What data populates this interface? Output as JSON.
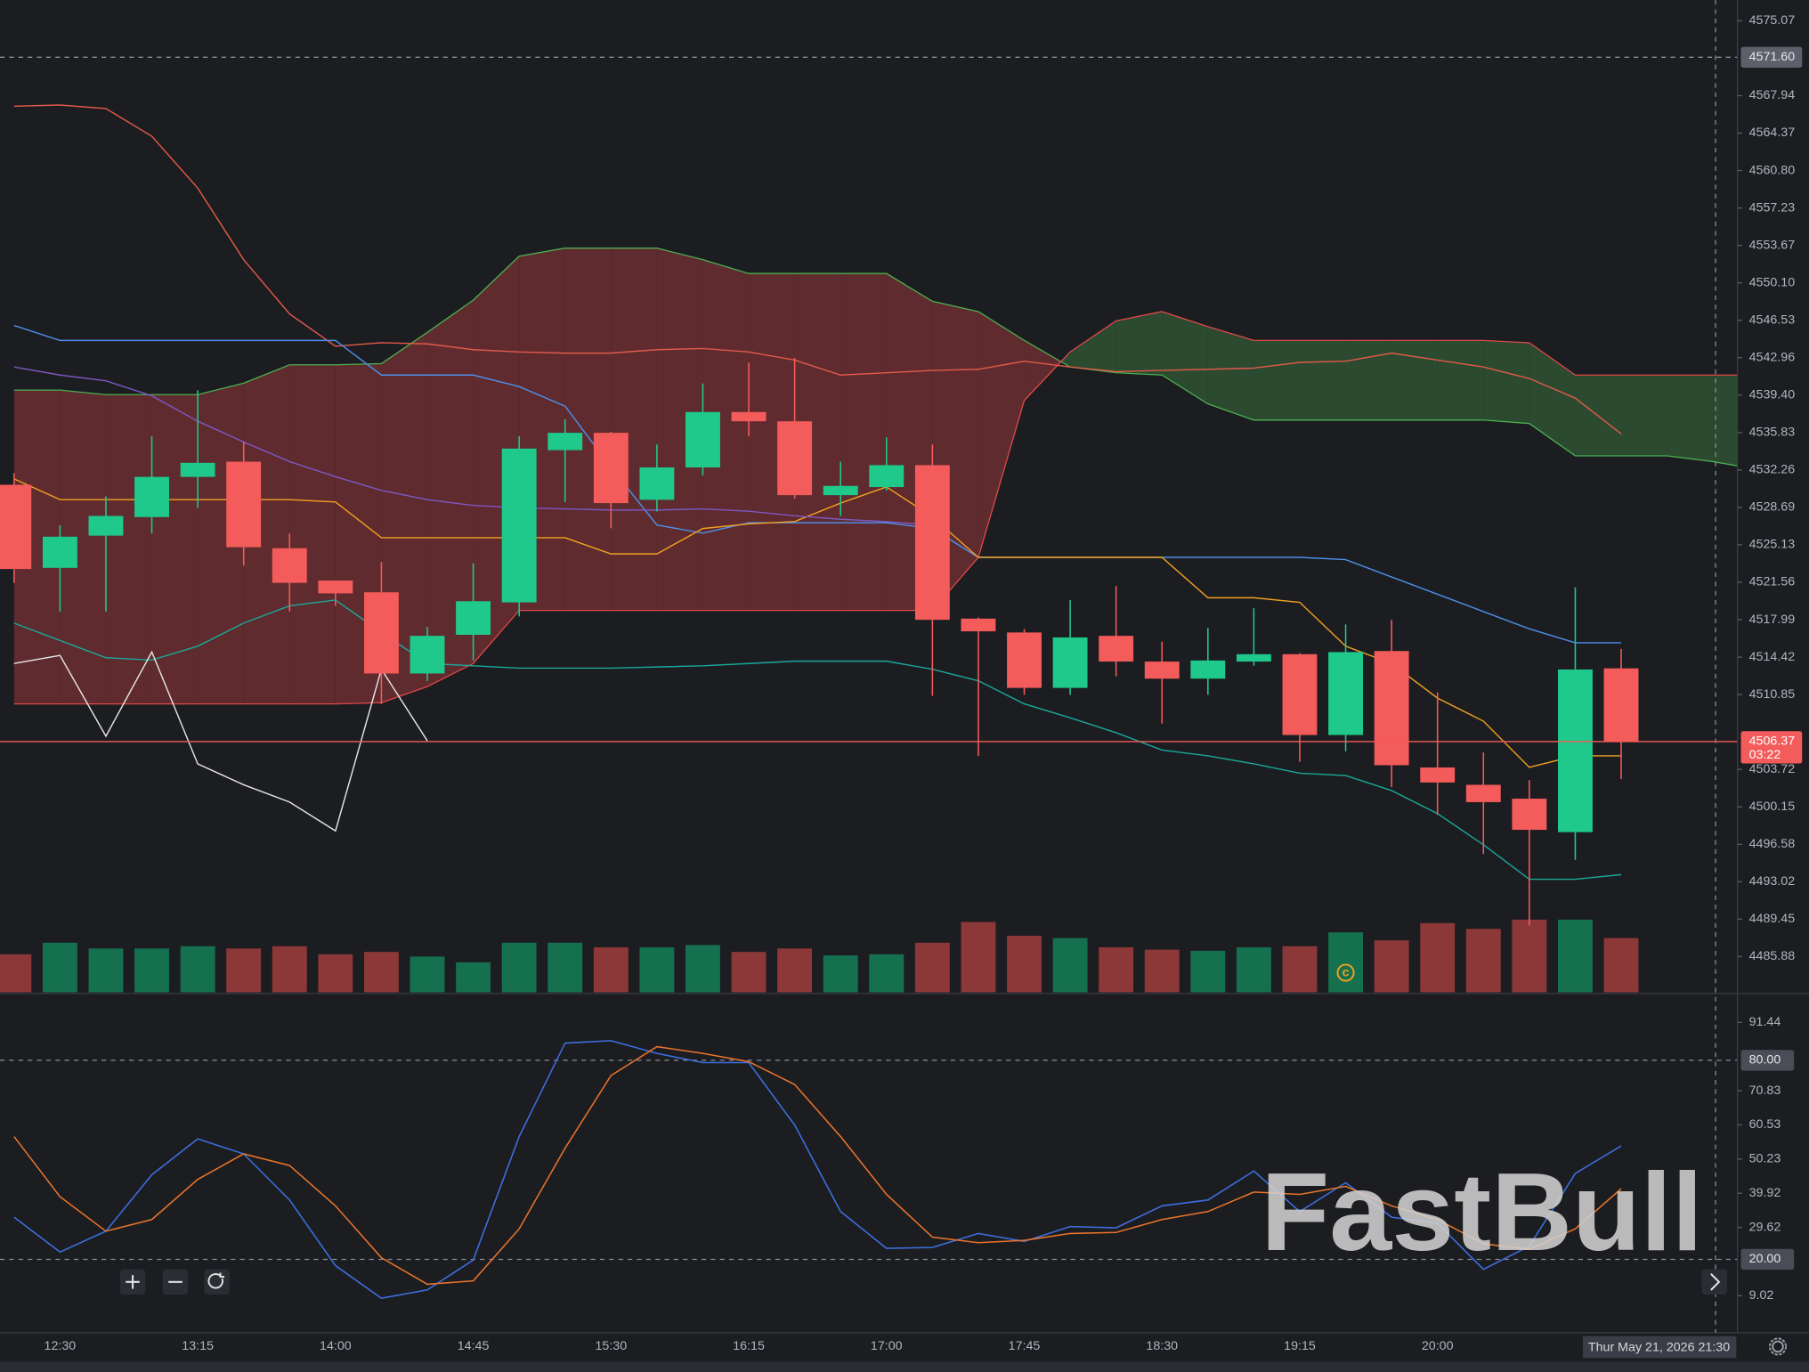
{
  "chart_data": [
    {
      "type": "candlestick",
      "categories": [
        null,
        "12:30",
        null,
        null,
        "13:15",
        null,
        null,
        "14:00",
        null,
        null,
        "14:45",
        null,
        null,
        "15:30",
        null,
        null,
        "16:15",
        null,
        null,
        "17:00",
        null,
        null,
        "17:45",
        null,
        null,
        "18:30",
        null,
        null,
        "19:15",
        null,
        null,
        "20:00",
        null,
        null,
        null,
        null,
        null,
        null,
        null
      ],
      "open": [
        4530.85,
        4522.93,
        4526.0,
        4527.77,
        4531.6,
        4533.05,
        4524.8,
        4521.72,
        4520.6,
        4512.86,
        4516.55,
        4519.64,
        4534.15,
        4535.8,
        4529.42,
        4532.5,
        4537.78,
        4536.9,
        4529.86,
        4530.63,
        4532.72,
        4518.09,
        4516.77,
        4511.49,
        4516.45,
        4514.0,
        4512.37,
        4514.0,
        4514.7,
        4507.0,
        4515.0,
        4503.9,
        4502.25,
        4500.93,
        4497.74,
        4513.35,
        null,
        null,
        null
      ],
      "high": [
        4531.95,
        4527.0,
        4529.75,
        4535.47,
        4539.87,
        4534.92,
        4526.2,
        4521.72,
        4523.5,
        4517.3,
        4523.37,
        4535.47,
        4537.1,
        4535.9,
        4534.7,
        4540.5,
        4542.5,
        4542.95,
        4533.05,
        4535.36,
        4534.7,
        4518.2,
        4517.1,
        4519.85,
        4521.2,
        4515.9,
        4517.2,
        4519.08,
        4514.8,
        4517.54,
        4517.98,
        4511.05,
        4505.33,
        4502.69,
        4521.07,
        4515.2,
        null,
        null,
        null
      ],
      "low": [
        4521.5,
        4518.75,
        4518.75,
        4526.2,
        4528.65,
        4523.15,
        4518.75,
        4519.3,
        4509.95,
        4512.15,
        4514.1,
        4518.3,
        4529.2,
        4526.7,
        4528.3,
        4531.73,
        4535.47,
        4529.53,
        4527.88,
        4530.3,
        4510.72,
        4505.0,
        4510.83,
        4510.83,
        4512.6,
        4508.08,
        4510.83,
        4513.6,
        4504.45,
        4505.44,
        4502.05,
        4499.39,
        4495.65,
        4488.85,
        4495.1,
        4502.8,
        null,
        null,
        null
      ],
      "close": [
        4522.82,
        4525.9,
        4527.88,
        4531.6,
        4532.94,
        4524.9,
        4521.5,
        4520.5,
        4512.86,
        4516.45,
        4519.75,
        4534.3,
        4535.8,
        4529.1,
        4532.5,
        4537.78,
        4536.9,
        4529.86,
        4530.74,
        4532.72,
        4517.98,
        4516.88,
        4511.49,
        4516.3,
        4514.0,
        4512.37,
        4514.1,
        4514.7,
        4507.0,
        4514.9,
        4504.12,
        4502.47,
        4500.6,
        4497.96,
        4513.24,
        4506.37,
        null,
        null,
        null
      ],
      "volume": [
        33,
        43,
        38,
        38,
        40,
        38,
        40,
        33,
        35,
        31,
        26,
        43,
        43,
        39,
        39,
        41,
        35,
        38,
        32,
        33,
        43,
        61,
        49,
        47,
        39,
        37,
        36,
        39,
        40,
        52,
        45,
        60,
        55,
        63,
        63,
        47,
        null,
        null,
        null
      ],
      "up_color": "#1fc98c",
      "down_color": "#f45b5b",
      "volume_up_color": "#15704f",
      "volume_down_color": "#8c3838",
      "ylim": [
        4482.47,
        4577.05
      ],
      "yticks": [
        4575.07,
        4567.94,
        4564.37,
        {
          "value": 4560.8,
          "label": "4560.80"
        },
        4557.23,
        4553.67,
        {
          "value": 4550.1,
          "label": "4550.10"
        },
        4546.53,
        4542.96,
        {
          "value": 4539.4,
          "label": "4539.40"
        },
        4535.83,
        4532.26,
        4528.69,
        4525.13,
        4521.56,
        4517.99,
        4514.42,
        4510.85,
        4503.72,
        4500.15,
        4496.58,
        4493.02,
        4489.45,
        4485.88
      ],
      "cloud": {
        "span_a": {
          "color": "#4caf50",
          "values": [
            4539.88,
            4539.88,
            4539.44,
            4539.44,
            4539.44,
            4540.54,
            4542.29,
            4542.29,
            4542.4,
            4545.38,
            4548.45,
            4552.63,
            4553.4,
            4553.4,
            4553.4,
            4552.3,
            4550.99,
            4550.99,
            4550.99,
            4550.99,
            4548.34,
            4547.36,
            4544.61,
            4542.08,
            4541.53,
            4541.31,
            4538.56,
            4537.02,
            4537.02,
            4537.02,
            4537.02,
            4537.02,
            4537.02,
            4536.69,
            4533.61,
            4533.61,
            4533.61,
            4533.06,
            4532.29
          ]
        },
        "span_b": {
          "color": "#e04848",
          "values": [
            4509.96,
            4509.96,
            4509.96,
            4509.96,
            4509.96,
            4509.96,
            4509.96,
            4509.96,
            4510.07,
            4511.61,
            4513.81,
            4518.87,
            4518.87,
            4518.87,
            4518.87,
            4518.87,
            4518.87,
            4518.87,
            4518.87,
            4518.87,
            4518.87,
            4523.93,
            4538.89,
            4543.51,
            4546.48,
            4547.36,
            4545.93,
            4544.61,
            4544.61,
            4544.61,
            4544.61,
            4544.61,
            4544.61,
            4544.39,
            4541.31,
            4541.31,
            4541.31,
            4541.31,
            4541.31
          ]
        },
        "fill_a_above": "#5f2b2e",
        "fill_b_above": "#2b4a30"
      },
      "overlays": [
        {
          "color": "#e05a4a",
          "values": [
            4566.93,
            4567.04,
            4566.71,
            4564.07,
            4559.12,
            4552.3,
            4547.14,
            4544.06,
            4544.39,
            4544.28,
            4543.73,
            4543.51,
            4543.4,
            4543.4,
            4543.73,
            4543.84,
            4543.51,
            4542.74,
            4541.31,
            4541.53,
            4541.75,
            4541.86,
            4542.63,
            4542.08,
            4541.64,
            4541.75,
            4541.86,
            4541.97,
            4542.52,
            4542.63,
            4543.4,
            4542.74,
            4542.08,
            4540.98,
            4539.11,
            4535.7,
            null,
            null,
            null
          ]
        },
        {
          "color": "#4d8fe8",
          "values": [
            4546.04,
            4544.61,
            4544.61,
            4544.61,
            4544.61,
            4544.61,
            4544.61,
            4544.61,
            4541.31,
            4541.31,
            4541.31,
            4540.21,
            4538.34,
            4532.51,
            4527.01,
            4526.24,
            4527.23,
            4527.23,
            4527.23,
            4527.23,
            4526.68,
            4523.93,
            4523.93,
            4523.93,
            4523.93,
            4523.93,
            4523.93,
            4523.93,
            4523.93,
            4523.71,
            4522.06,
            4520.41,
            4518.76,
            4517.11,
            4515.79,
            4515.79,
            null,
            null,
            null
          ]
        },
        {
          "color": "#f0a020",
          "values": [
            4531.41,
            4529.43,
            4529.43,
            4529.43,
            4529.43,
            4529.43,
            4529.43,
            4529.21,
            4525.8,
            4525.8,
            4525.8,
            4525.8,
            4525.8,
            4524.26,
            4524.26,
            4526.68,
            4527.12,
            4527.34,
            4529.1,
            4530.64,
            4527.78,
            4523.93,
            4523.93,
            4523.93,
            4523.93,
            4523.93,
            4520.08,
            4520.08,
            4519.64,
            4515.46,
            4513.81,
            4510.51,
            4508.31,
            4503.91,
            4505.01,
            4505.01,
            null,
            null,
            null
          ]
        },
        {
          "color": "#1aa89a",
          "values": [
            4517.66,
            4516.01,
            4514.36,
            4514.14,
            4515.46,
            4517.66,
            4519.31,
            4519.86,
            4516.78,
            4513.81,
            4513.59,
            4513.37,
            4513.37,
            4513.37,
            4513.48,
            4513.59,
            4513.81,
            4514.03,
            4514.03,
            4514.03,
            4513.26,
            4512.16,
            4509.96,
            4508.64,
            4507.21,
            4505.56,
            4505.01,
            4504.24,
            4503.36,
            4503.14,
            4501.71,
            4499.51,
            4496.54,
            4493.25,
            4493.25,
            4493.69,
            null,
            null,
            null
          ]
        },
        {
          "color": "#7e57c2",
          "values": [
            4542.08,
            4541.31,
            4540.76,
            4539.33,
            4536.91,
            4534.93,
            4533.06,
            4531.62,
            4530.31,
            4529.43,
            4528.88,
            4528.66,
            4528.55,
            4528.44,
            4528.44,
            4528.55,
            4528.33,
            4527.89,
            4527.56,
            4527.34,
            4527.01,
            null,
            null,
            null,
            null,
            null,
            null,
            null,
            null,
            null,
            null,
            null,
            null,
            null,
            null,
            null,
            null,
            null,
            null
          ]
        },
        {
          "color": "#e6e6e6",
          "values": [
            4513.81,
            4514.58,
            4506.88,
            4514.91,
            4504.24,
            4502.25,
            4500.6,
            4497.86,
            4513.26,
            4506.44,
            null,
            null,
            null,
            null,
            null,
            null,
            null,
            null,
            null,
            null,
            null,
            null,
            null,
            null,
            null,
            null,
            null,
            null,
            null,
            null,
            null,
            null,
            null,
            null,
            null,
            null,
            null,
            null,
            null
          ]
        }
      ],
      "price_line": {
        "value": 4571.6,
        "label": "4571.60"
      },
      "last_price": {
        "value": 4506.37,
        "label": "4506.37",
        "countdown": "03:22"
      },
      "event_marker": "c"
    },
    {
      "type": "line",
      "ylim": [
        -2.11,
        99.79
      ],
      "yticks": [
        91.44,
        70.83,
        60.53,
        50.23,
        39.92,
        29.62,
        9.02
      ],
      "levels": [
        {
          "value": 80,
          "label": "80.00"
        },
        {
          "value": 20,
          "label": "20.00"
        }
      ],
      "series": [
        {
          "color": "#3d6fe0",
          "values": [
            32.7,
            22.2,
            28.5,
            45.5,
            56.3,
            51.8,
            37.9,
            18.1,
            8.3,
            10.8,
            19.8,
            57.0,
            85.2,
            85.9,
            82.1,
            79.3,
            79.3,
            60.5,
            34.4,
            23.3,
            23.6,
            27.8,
            25.4,
            29.9,
            29.5,
            36.1,
            37.9,
            46.6,
            34.4,
            43.1,
            32.7,
            30.9,
            17.0,
            24.0,
            45.9,
            54.2
          ]
        },
        {
          "color": "#e8742a",
          "values": [
            57.0,
            38.9,
            28.5,
            32.0,
            44.1,
            51.8,
            48.3,
            36.1,
            20.5,
            12.5,
            13.5,
            29.2,
            53.5,
            75.4,
            84.1,
            82.1,
            79.6,
            72.7,
            57.0,
            39.6,
            26.7,
            25.0,
            25.7,
            27.8,
            28.1,
            32.0,
            34.4,
            40.3,
            39.6,
            42.0,
            36.1,
            32.0,
            24.7,
            23.0,
            29.2,
            41.3
          ]
        }
      ]
    }
  ],
  "crosshair_time": "Thur May 21, 2026 21:30",
  "watermark": "FastBull"
}
